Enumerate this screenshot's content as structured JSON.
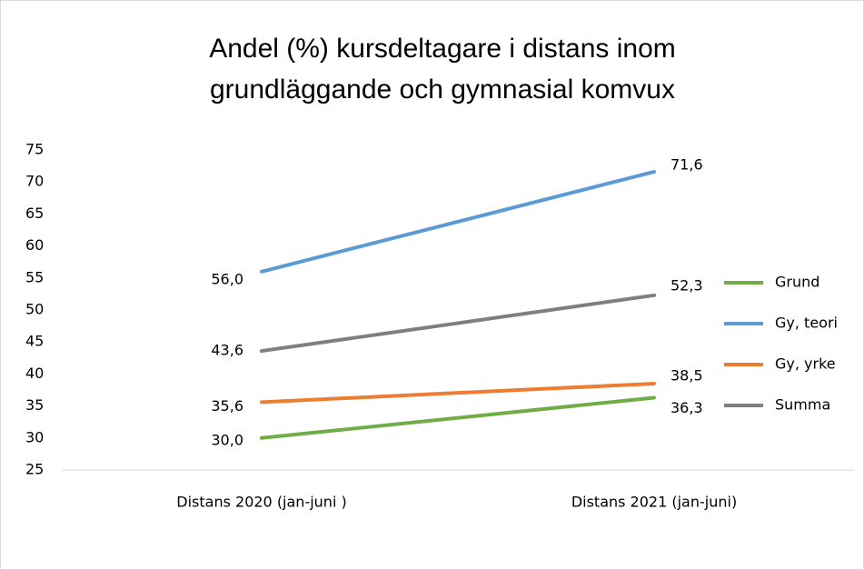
{
  "chart_data": {
    "type": "line",
    "title": [
      "Andel (%) kursdeltagare i distans inom",
      "grundläggande och gymnasial komvux"
    ],
    "categories": [
      "Distans 2020 (jan-juni )",
      "Distans 2021 (jan-juni)"
    ],
    "series": [
      {
        "name": "Grund",
        "color": "#70ad47",
        "values": [
          30.0,
          36.3
        ],
        "value_labels": [
          "30,0",
          "36,3"
        ]
      },
      {
        "name": "Gy, teori",
        "color": "#5b9bd5",
        "values": [
          56.0,
          71.6
        ],
        "value_labels": [
          "56,0",
          "71,6"
        ]
      },
      {
        "name": "Gy, yrke",
        "color": "#ed7d31",
        "values": [
          35.6,
          38.5
        ],
        "value_labels": [
          "35,6",
          "38,5"
        ]
      },
      {
        "name": "Summa",
        "color": "#7f7f7f",
        "values": [
          43.6,
          52.3
        ],
        "value_labels": [
          "43,6",
          "52,3"
        ]
      }
    ],
    "ylim": [
      25,
      75
    ],
    "yticks": [
      25,
      30,
      35,
      40,
      45,
      50,
      55,
      60,
      65,
      70,
      75
    ],
    "grid": false,
    "legend": "right"
  }
}
